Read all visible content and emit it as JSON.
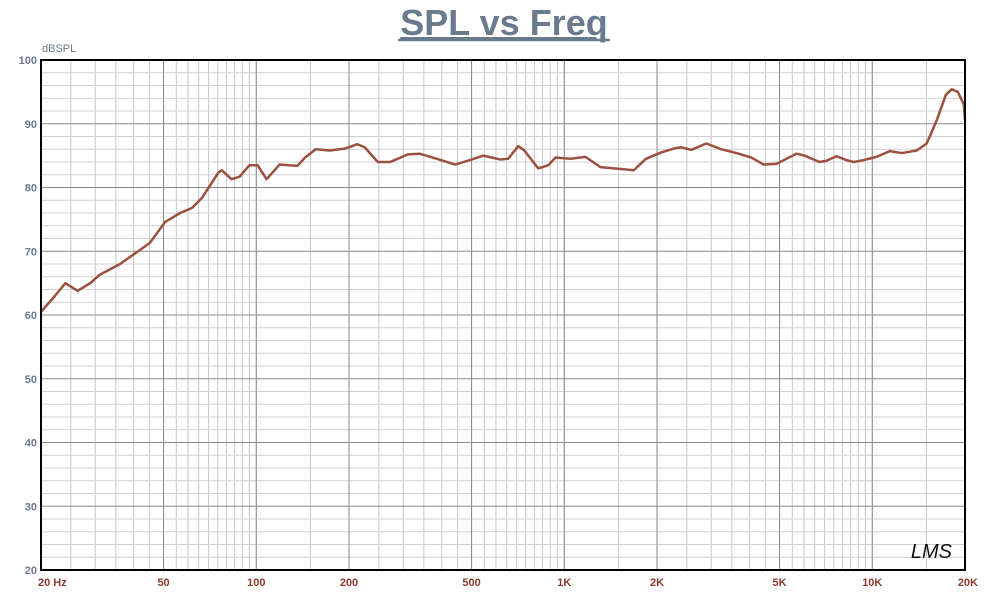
{
  "chart_data": {
    "type": "line",
    "title": "SPL vs Freq",
    "y_label": "dBSPL",
    "watermark": "LMS",
    "xscale": "log",
    "grid": true,
    "minor_grid": true,
    "xlim": [
      20,
      20000
    ],
    "ylim": [
      20,
      100
    ],
    "xticks": [
      {
        "value": 20,
        "label": "20 Hz"
      },
      50,
      100,
      200,
      500,
      {
        "value": 1000,
        "label": "1K"
      },
      {
        "value": 2000,
        "label": "2K"
      },
      {
        "value": 5000,
        "label": "5K"
      },
      {
        "value": 10000,
        "label": "10K"
      },
      {
        "value": 20000,
        "label": "20K"
      }
    ],
    "yticks": [
      20,
      30,
      40,
      50,
      60,
      70,
      80,
      90,
      100
    ],
    "x": [
      20,
      22.2,
      24,
      26.3,
      28.9,
      31,
      36.1,
      41.9,
      45.1,
      50.6,
      56.6,
      61.9,
      66.7,
      75.5,
      77.3,
      83.1,
      88.3,
      95,
      101,
      108,
      119,
      127,
      136,
      144,
      156,
      173,
      194,
      213,
      225,
      248,
      272,
      311,
      339,
      380,
      442,
      494,
      545,
      619,
      657,
      709,
      742,
      823,
      888,
      936,
      1048,
      1172,
      1311,
      1524,
      1681,
      1841,
      2063,
      2307,
      2397,
      2585,
      2891,
      3235,
      3620,
      4051,
      4436,
      4883,
      5264,
      5674,
      6029,
      6738,
      7098,
      7651,
      8245,
      8697,
      9376,
      10324,
      11388,
      12456,
      13944,
      15016,
      16183,
      17313,
      18113,
      18952,
      19829,
      20000
    ],
    "series": [
      {
        "color": "#9b5040",
        "values": [
          60.5,
          63,
          65,
          63.8,
          65,
          66.3,
          68,
          70.2,
          71.3,
          74.6,
          76,
          76.8,
          78.4,
          82.4,
          82.7,
          81.3,
          81.7,
          83.5,
          83.5,
          81.3,
          83.6,
          83.5,
          83.4,
          84.7,
          86,
          85.8,
          86.1,
          86.8,
          86.3,
          84,
          84,
          85.2,
          85.3,
          84.6,
          83.6,
          84.3,
          85,
          84.4,
          84.5,
          86.5,
          85.8,
          83,
          83.5,
          84.7,
          84.5,
          84.8,
          83.2,
          82.9,
          82.7,
          84.5,
          85.5,
          86.2,
          86.3,
          85.9,
          86.9,
          86,
          85.4,
          84.7,
          83.6,
          83.7,
          84.5,
          85.3,
          85,
          84,
          84.2,
          84.9,
          84.3,
          84,
          84.3,
          84.8,
          85.7,
          85.4,
          85.8,
          86.9,
          90.5,
          94.5,
          95.4,
          95,
          93,
          90.5
        ]
      }
    ]
  }
}
